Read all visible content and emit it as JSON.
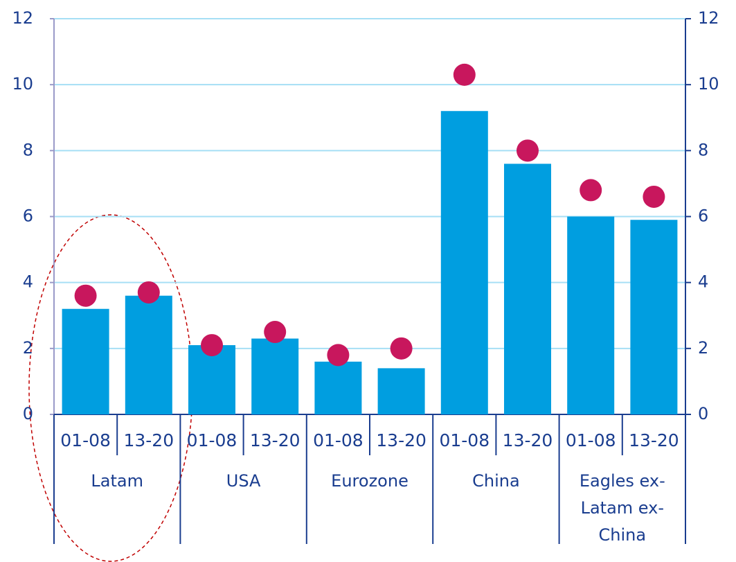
{
  "chart_data": {
    "type": "bar",
    "categories": [
      "01-08",
      "13-20",
      "01-08",
      "13-20",
      "01-08",
      "13-20",
      "01-08",
      "13-20",
      "01-08",
      "13-20"
    ],
    "groups": [
      [
        "Latam"
      ],
      [
        "USA"
      ],
      [
        "Eurozone"
      ],
      [
        "China"
      ],
      [
        "Eagles ex-",
        "Latam ex-",
        "China"
      ]
    ],
    "series": [
      {
        "type": "bar",
        "color": "#009ee0",
        "values": [
          3.2,
          3.6,
          2.1,
          2.3,
          1.6,
          1.4,
          9.2,
          7.6,
          6.0,
          5.9
        ]
      },
      {
        "type": "scatter",
        "axis": "y2",
        "color": "#c8175d",
        "values": [
          3.6,
          3.7,
          2.1,
          2.5,
          1.8,
          2.0,
          10.3,
          8.0,
          6.8,
          6.6
        ]
      }
    ],
    "ylim": [
      0,
      12
    ],
    "yticks": [
      0,
      2,
      4,
      6,
      8,
      10,
      12
    ],
    "y2lim": [
      0,
      12
    ],
    "y2ticks": [
      0,
      2,
      4,
      6,
      8,
      10,
      12
    ],
    "grid": true
  }
}
